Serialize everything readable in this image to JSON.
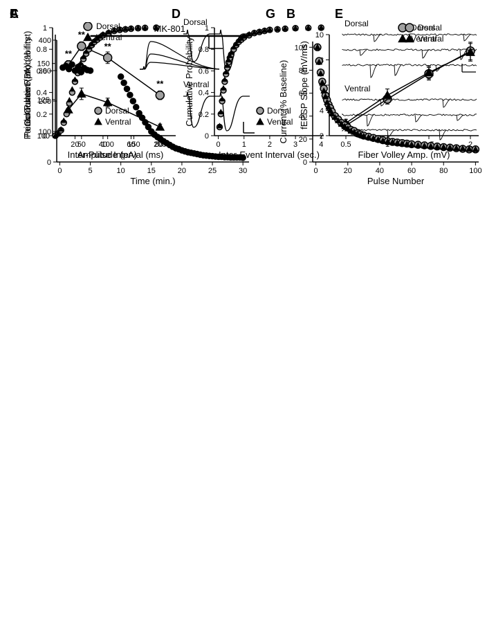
{
  "legend": {
    "dorsal_label": "Dorsal",
    "ventral_label": "Ventral",
    "dorsal_color": "#a0a0a0",
    "dorsal_stroke": "#000000",
    "ventral_color": "#000000"
  },
  "panelA": {
    "label": "A",
    "xlabel": "Inter-Pulse Interval (ms)",
    "ylabel": "Paired-Pulse Ratio (% first)",
    "xlim": [
      0,
      230
    ],
    "ylim": [
      100,
      170
    ],
    "xticks": [
      50,
      100,
      150,
      200
    ],
    "yticks": [
      100,
      125,
      150
    ],
    "dorsal": {
      "x": [
        25,
        50,
        100,
        200
      ],
      "y": [
        149,
        162,
        154,
        128
      ],
      "err": [
        3,
        3,
        4,
        3
      ]
    },
    "ventral": {
      "x": [
        25,
        50,
        100,
        200
      ],
      "y": [
        118,
        129,
        123,
        106
      ],
      "err": [
        3,
        4,
        3,
        2
      ]
    },
    "sig_marks": [
      "**",
      "**",
      "**",
      "**"
    ],
    "sig_x": [
      25,
      50,
      100,
      200
    ],
    "trace_labels": [
      "Dorsal",
      "Ventral"
    ],
    "marker_radius": 6,
    "line_width": 1.5
  },
  "panelB": {
    "label": "B",
    "xlabel": "Fiber Volley Amp. (mV)",
    "ylabel": "fEPSP Slope (mV/ms)",
    "xlim": [
      0.3,
      2.1
    ],
    "ylim": [
      2,
      10
    ],
    "xticks": [
      0.5,
      1.0,
      1.5,
      2.0
    ],
    "yticks": [
      2,
      4,
      6,
      8,
      10
    ],
    "dorsal": {
      "x": [
        0.5,
        1.0,
        1.5,
        2.0
      ],
      "y": [
        2.8,
        4.9,
        6.9,
        8.7
      ],
      "err": [
        0.3,
        0.4,
        0.5,
        0.7
      ]
    },
    "ventral": {
      "x": [
        0.5,
        1.0,
        1.5,
        2.0
      ],
      "y": [
        3.0,
        5.2,
        7.0,
        8.6
      ],
      "err": [
        0.3,
        0.5,
        0.5,
        0.7
      ]
    },
    "marker_radius": 6,
    "line_width": 1.5
  },
  "panelC": {
    "label": "C",
    "xlabel": "Amplitude (pA)",
    "ylabel": "Cumulative Probability",
    "xlim": [
      4,
      82
    ],
    "ylim": [
      0,
      1
    ],
    "xticks": [
      20,
      40,
      60,
      80
    ],
    "yticks": [
      0.0,
      0.2,
      0.4,
      0.6,
      0.8,
      1.0
    ],
    "x": [
      6,
      8,
      10,
      12,
      14,
      16,
      18,
      20,
      22,
      24,
      26,
      28,
      30,
      32,
      34,
      36,
      38,
      40,
      44,
      48,
      52,
      56,
      60,
      65,
      70,
      78
    ],
    "dorsal_y": [
      0.0,
      0.02,
      0.05,
      0.12,
      0.2,
      0.3,
      0.4,
      0.5,
      0.58,
      0.65,
      0.71,
      0.76,
      0.8,
      0.84,
      0.87,
      0.89,
      0.91,
      0.93,
      0.95,
      0.97,
      0.98,
      0.985,
      0.99,
      0.995,
      0.998,
      1.0
    ],
    "ventral_y": [
      0.0,
      0.02,
      0.06,
      0.14,
      0.23,
      0.33,
      0.43,
      0.52,
      0.6,
      0.67,
      0.73,
      0.78,
      0.82,
      0.85,
      0.88,
      0.9,
      0.92,
      0.94,
      0.96,
      0.975,
      0.985,
      0.99,
      0.995,
      0.998,
      0.999,
      1.0
    ],
    "marker_radius": 4
  },
  "panelD": {
    "label": "D",
    "xlabel": "Inter-Event Interval (sec.)",
    "ylabel": "Cumulative Probability",
    "xlim": [
      -0.15,
      4.1
    ],
    "ylim": [
      0,
      1
    ],
    "xticks": [
      0,
      1,
      2,
      3,
      4
    ],
    "yticks": [
      0.0,
      0.2,
      0.4,
      0.6,
      0.8,
      1.0
    ],
    "x": [
      0.05,
      0.1,
      0.15,
      0.2,
      0.25,
      0.3,
      0.35,
      0.4,
      0.45,
      0.5,
      0.6,
      0.7,
      0.8,
      0.9,
      1.0,
      1.2,
      1.4,
      1.6,
      1.8,
      2.0,
      2.3,
      2.6,
      3.0,
      3.5,
      4.0
    ],
    "dorsal_y": [
      0.08,
      0.2,
      0.32,
      0.42,
      0.5,
      0.57,
      0.63,
      0.68,
      0.72,
      0.75,
      0.8,
      0.84,
      0.87,
      0.89,
      0.91,
      0.93,
      0.95,
      0.96,
      0.97,
      0.98,
      0.985,
      0.99,
      0.995,
      0.998,
      1.0
    ],
    "ventral_y": [
      0.09,
      0.22,
      0.34,
      0.44,
      0.52,
      0.59,
      0.65,
      0.7,
      0.74,
      0.77,
      0.82,
      0.85,
      0.88,
      0.9,
      0.92,
      0.94,
      0.955,
      0.965,
      0.975,
      0.982,
      0.988,
      0.992,
      0.996,
      0.999,
      1.0
    ],
    "marker_radius": 4
  },
  "panelE": {
    "label": "E",
    "dorsal_label": "Dorsal",
    "ventral_label": "Ventral"
  },
  "panelF": {
    "label": "F",
    "xlabel": "Time (min.)",
    "ylabel": "Peak Current (pA)",
    "bar_label": "MK-801",
    "xlim": [
      -0.5,
      31
    ],
    "ylim": [
      0,
      400
    ],
    "xticks": [
      0,
      5,
      10,
      15,
      20,
      25,
      30
    ],
    "yticks": [
      0,
      100,
      200,
      300,
      400
    ],
    "points_x": [
      0.5,
      1,
      1.5,
      2,
      2.5,
      3,
      3.5,
      4,
      4.5,
      5,
      10,
      10.5,
      11,
      11.5,
      12,
      12.5,
      13,
      13.5,
      14,
      14.5,
      15,
      15.5,
      16,
      16.5,
      17,
      17.5,
      18,
      18.5,
      19,
      19.5,
      20,
      20.5,
      21,
      21.5,
      22,
      22.5,
      23,
      23.5,
      24,
      24.5,
      25,
      25.5,
      26,
      26.5,
      27,
      27.5,
      28,
      28.5,
      29,
      29.5,
      30
    ],
    "points_y": [
      310,
      315,
      305,
      320,
      300,
      312,
      295,
      308,
      302,
      300,
      280,
      260,
      240,
      220,
      200,
      180,
      160,
      145,
      130,
      115,
      100,
      90,
      82,
      75,
      68,
      62,
      56,
      50,
      45,
      42,
      38,
      35,
      32,
      30,
      28,
      26,
      24,
      22,
      21,
      20,
      19,
      18,
      17,
      17,
      16,
      16,
      15,
      15,
      15,
      15,
      14
    ],
    "bar_x": [
      5,
      31
    ],
    "marker_radius": 4,
    "dot_color": "#000000"
  },
  "panelG": {
    "label": "G",
    "xlabel": "Pulse Number",
    "ylabel": "Current (% Baseline)",
    "xlim": [
      -2,
      102
    ],
    "ylim": [
      0,
      105
    ],
    "xticks": [
      0,
      20,
      40,
      60,
      80,
      100
    ],
    "yticks": [
      0,
      20,
      40,
      60,
      80,
      100
    ],
    "x": [
      1,
      2,
      3,
      4,
      5,
      6,
      7,
      8,
      9,
      10,
      12,
      14,
      16,
      18,
      20,
      22,
      24,
      26,
      28,
      30,
      33,
      36,
      39,
      42,
      45,
      48,
      51,
      54,
      57,
      60,
      64,
      68,
      72,
      76,
      80,
      84,
      88,
      92,
      96,
      100
    ],
    "dorsal_y": [
      100,
      88,
      78,
      70,
      64,
      58,
      54,
      50,
      47,
      44,
      40,
      37,
      34,
      32,
      30,
      28,
      27,
      25,
      24,
      23,
      22,
      21,
      20,
      19,
      18,
      17.5,
      17,
      16.5,
      16,
      15.5,
      15,
      14.5,
      14,
      13.5,
      13,
      12.5,
      12,
      11.5,
      11,
      11
    ],
    "ventral_y": [
      100,
      87,
      77,
      69,
      62,
      57,
      52,
      48,
      45,
      42,
      39,
      36,
      33,
      31,
      29,
      27,
      26,
      24.5,
      23.5,
      22.5,
      21.5,
      20.5,
      19.5,
      18.5,
      17.8,
      17.2,
      16.6,
      16,
      15.5,
      15,
      14.5,
      14,
      13.6,
      13.2,
      12.8,
      12.4,
      12,
      11.6,
      11.3,
      11
    ],
    "marker_radius": 5
  }
}
